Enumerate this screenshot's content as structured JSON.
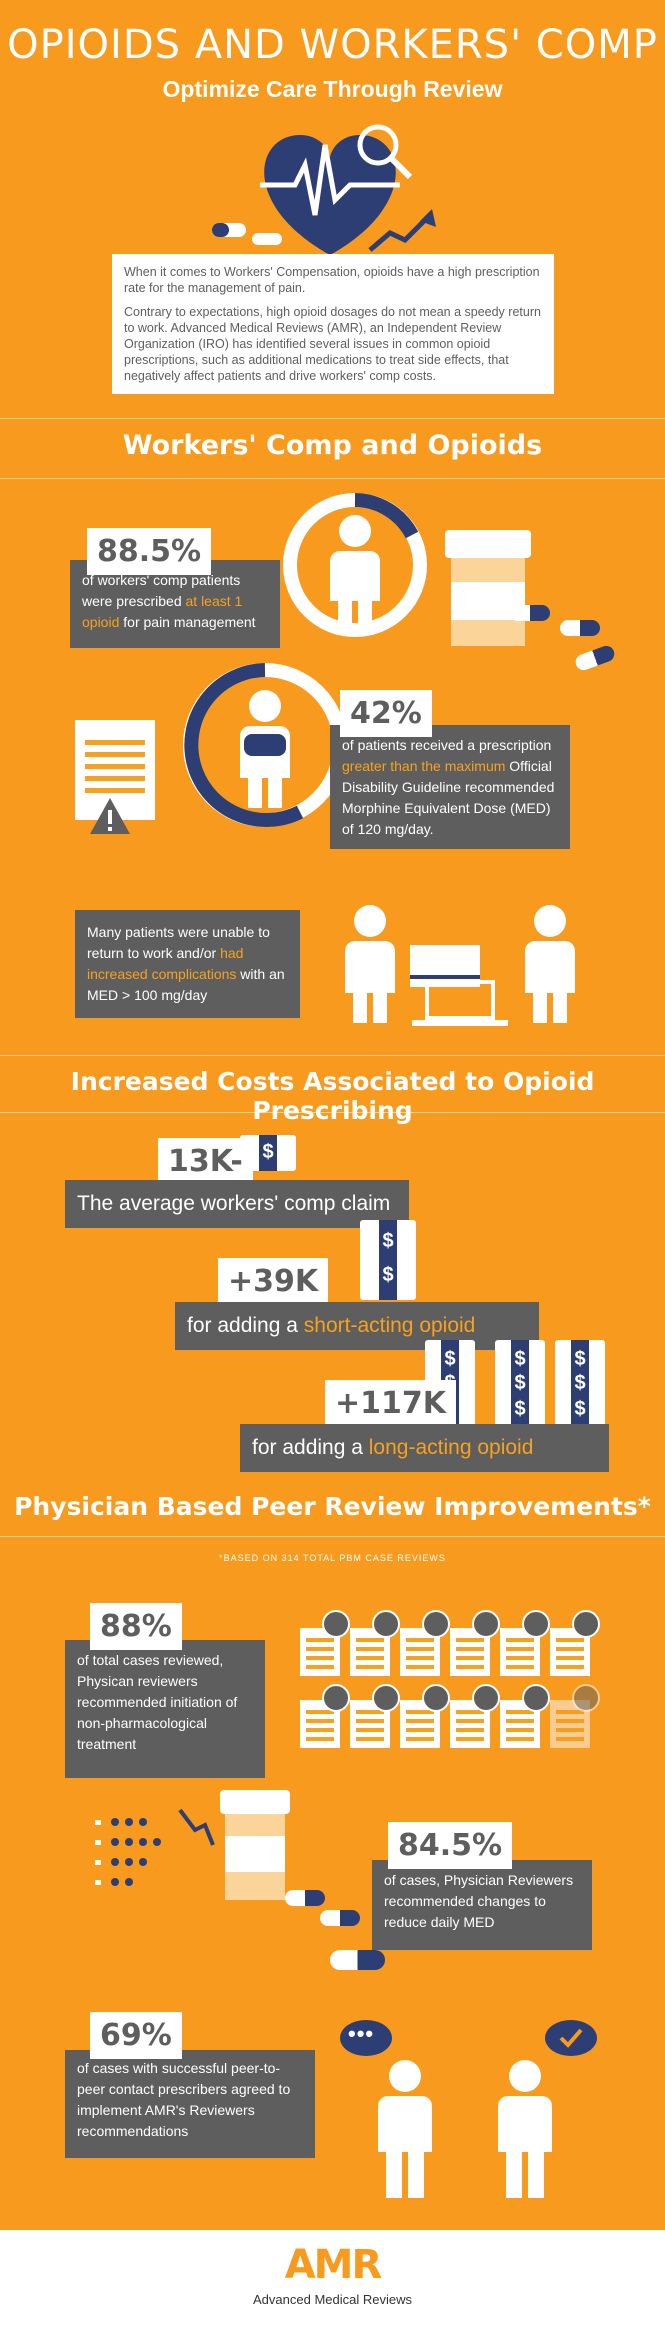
{
  "header": {
    "title": "OPIOIDS AND WORKERS' COMP",
    "subtitle": "Optimize Care Through Review"
  },
  "intro": {
    "p1": "When it comes to Workers' Compensation, opioids have a high prescription rate for the management of pain.",
    "p2": "Contrary to expectations, high opioid dosages do not mean a speedy return to work. Advanced Medical Reviews (AMR), an Independent Review Organization (IRO) has identified several issues in common opioid prescriptions, such as additional medications to treat side effects, that negatively affect patients and drive workers' comp costs."
  },
  "section1": {
    "title": "Workers' Comp and Opioids",
    "stat1": {
      "value": "88.5%",
      "pre": "of workers' comp patients were prescribed ",
      "hl": "at least 1 opioid",
      "post": " for pain management"
    },
    "stat2": {
      "value": "42%",
      "pre": "of patients received a prescription ",
      "hl": "greater than the maximum",
      "post": " Official Disability Guideline recommended Morphine Equivalent Dose (MED) of 120 mg/day."
    },
    "stat3": {
      "pre": "Many patients were unable to return to work and/or ",
      "hl": "had increased complications",
      "post": " with an MED > 100 mg/day"
    }
  },
  "section2": {
    "title": "Increased Costs Associated to Opioid Prescribing",
    "cost1": {
      "value": "13K-",
      "label": "The average workers' comp claim"
    },
    "cost2": {
      "value": "+39K",
      "pre": "for adding a ",
      "hl": "short-acting opioid"
    },
    "cost3": {
      "value": "+117K",
      "pre": "for adding a ",
      "hl": "long-acting opioid"
    },
    "dollar": "$"
  },
  "section3": {
    "title": "Physician Based Peer Review Improvements*",
    "note": "*BASED ON 314 TOTAL PBM CASE REVIEWS",
    "stat1": {
      "value": "88%",
      "text": "of total cases reviewed, Physican reviewers recommended initiation of non-pharmacological treatment"
    },
    "stat2": {
      "value": "84.5%",
      "text": "of cases, Physician Reviewers recommended changes to reduce daily MED"
    },
    "stat3": {
      "value": "69%",
      "text": "of cases with successful peer-to-peer contact prescribers agreed to implement AMR's Reviewers recommendations"
    }
  },
  "footer": {
    "logo": "AMR",
    "name": "Advanced Medical Reviews"
  },
  "colors": {
    "orange": "#F79A1E",
    "gray": "#5E5E5E",
    "navy": "#2C3E73"
  }
}
